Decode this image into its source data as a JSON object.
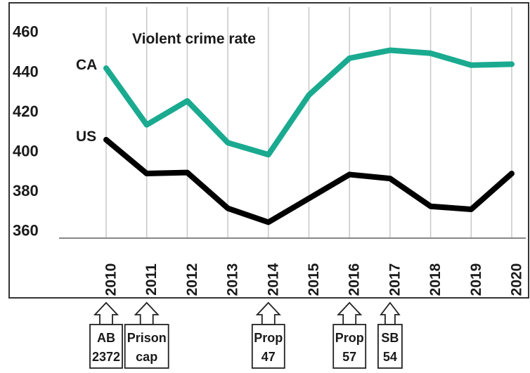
{
  "chart_data": {
    "type": "line",
    "title": "Violent crime rate",
    "x": [
      "2010",
      "2011",
      "2012",
      "2013",
      "2014",
      "2015",
      "2016",
      "2017",
      "2018",
      "2019",
      "2020"
    ],
    "yticks": [
      "360",
      "380",
      "400",
      "420",
      "440",
      "460"
    ],
    "ylim": [
      356,
      462
    ],
    "grid": "vertical",
    "series": [
      {
        "name": "CA",
        "color": "#1aaa90",
        "values": [
          441.5,
          413,
          425,
          404,
          398,
          428,
          446.5,
          450.5,
          449,
          443,
          443.5
        ]
      },
      {
        "name": "US",
        "color": "#000000",
        "values": [
          405.5,
          388.5,
          389,
          371,
          364,
          376,
          388,
          386,
          372,
          370.5,
          388.5
        ]
      }
    ],
    "events": [
      {
        "x": "2010",
        "lines": [
          "AB",
          "2372"
        ]
      },
      {
        "x": "2011",
        "lines": [
          "Prison",
          "cap"
        ]
      },
      {
        "x": "2014",
        "lines": [
          "Prop",
          "47"
        ]
      },
      {
        "x": "2016",
        "lines": [
          "Prop",
          "57"
        ]
      },
      {
        "x": "2017",
        "lines": [
          "SB",
          "54"
        ]
      }
    ]
  }
}
